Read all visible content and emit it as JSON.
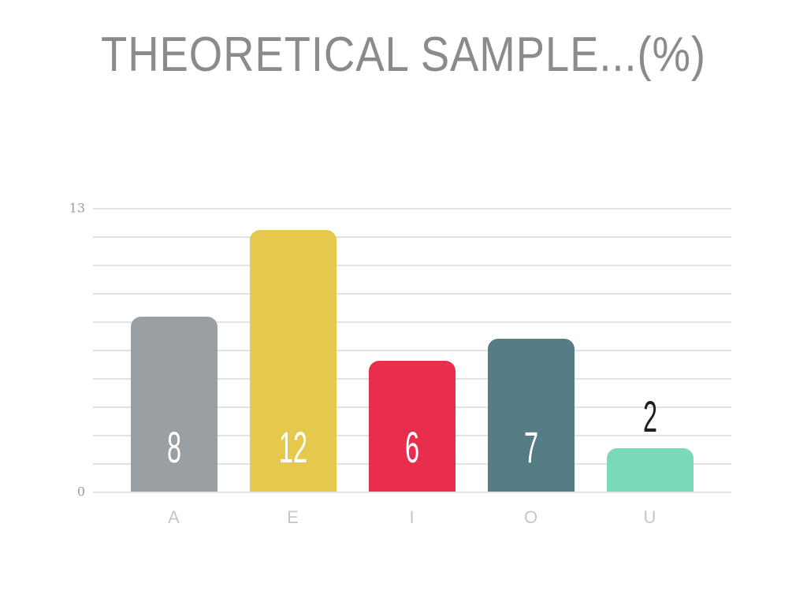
{
  "chart_data": {
    "type": "bar",
    "title": "THEORETICAL SAMPLE...(%)",
    "categories": [
      "A",
      "E",
      "I",
      "O",
      "U"
    ],
    "values": [
      8,
      12,
      6,
      7,
      2
    ],
    "bar_colors": [
      "#9a9fa4",
      "#e5c94d",
      "#e82d4d",
      "#567d85",
      "#7ad9ba"
    ],
    "xlabel": "",
    "ylabel": "",
    "ylim": [
      0,
      13
    ],
    "y_ticks": [
      {
        "value": 13,
        "label": "13"
      },
      {
        "value": 0,
        "label": "0"
      }
    ],
    "gridline_intervals": 10,
    "grid": "on",
    "legend": "none",
    "colors": {
      "title": "#8b8b8b",
      "grid": "#e2e2e2",
      "y_tick_label": "#9b9b9b",
      "category_label": "#c6c6c6",
      "value_label_inside": "#ffffff",
      "value_label_above": "#1f1f1f",
      "background": "#ffffff"
    }
  }
}
